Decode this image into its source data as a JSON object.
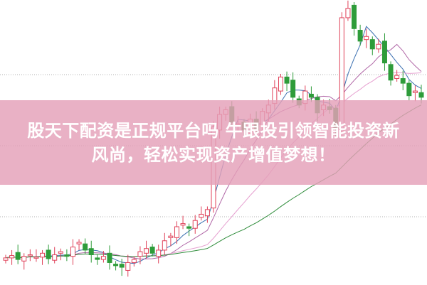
{
  "headline": {
    "line1": "股天下配资是正规平台吗 牛跟投引领智能投资新",
    "line2": "风尚，轻松实现资产增值梦想！"
  },
  "chart_data": {
    "type": "candlestick",
    "closes": [
      72,
      75,
      70,
      74,
      76,
      73,
      78,
      71,
      76,
      80,
      74,
      86,
      92,
      82,
      76,
      70,
      74,
      66,
      62,
      60,
      66,
      70,
      80,
      84,
      78,
      82,
      94,
      100,
      112,
      116,
      110,
      120,
      128,
      134,
      240,
      256,
      262,
      246,
      244,
      236,
      250,
      236,
      260,
      268,
      290,
      304,
      296,
      278,
      268,
      286,
      278,
      258,
      268,
      262,
      238,
      380,
      392,
      366,
      350,
      356,
      340,
      346,
      322,
      300,
      306,
      296,
      280,
      286,
      278
    ],
    "colors": {
      "up": "#e0425a",
      "down": "#2e9c3a",
      "grid": "#b0b0b0",
      "ma5": "#3a6fb0",
      "ma10": "#b066a6",
      "ma20": "#e6a0d0",
      "ma60": "#2e8c3a",
      "banner": "#e4a0b8"
    }
  }
}
